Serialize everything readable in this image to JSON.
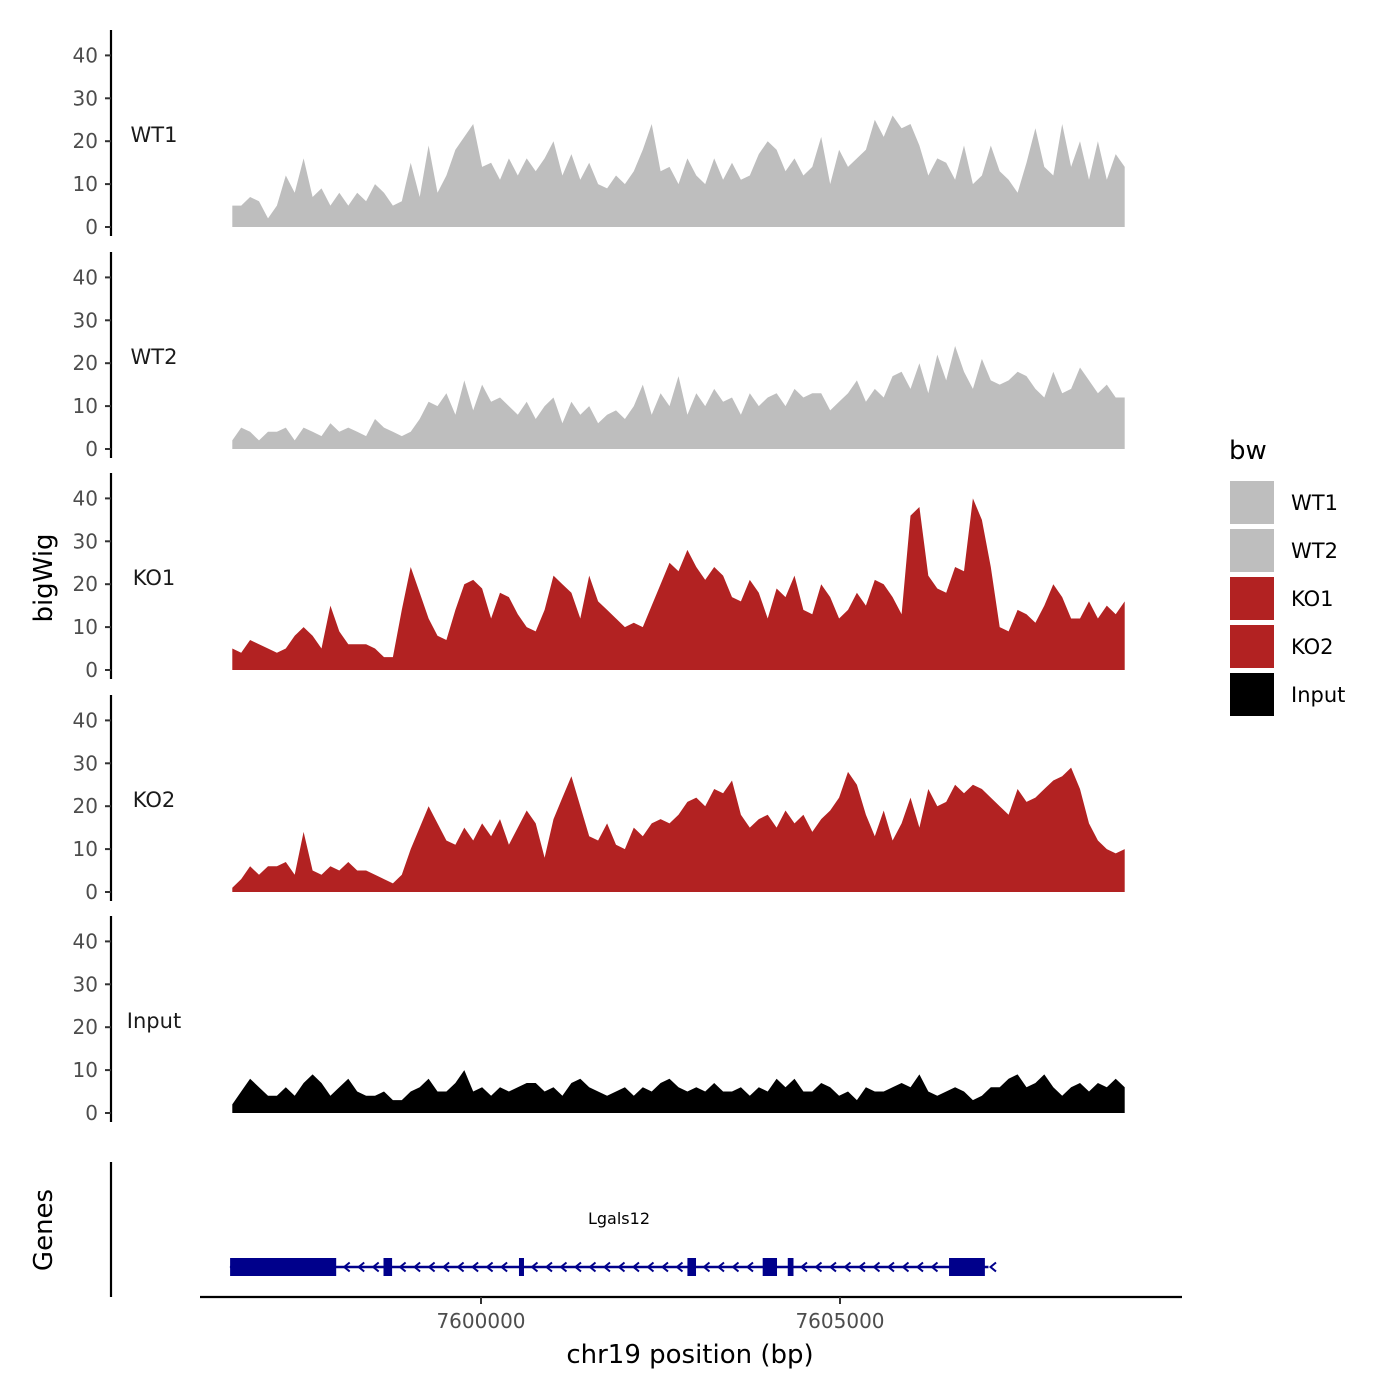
{
  "chart_data": {
    "type": "area",
    "y_axis_title": "bigWig",
    "genes_axis_title": "Genes",
    "x_axis_title": "chr19 position (bp)",
    "x_range": [
      7596200,
      7609900
    ],
    "x_ticks": [
      7600000,
      7605000
    ],
    "x_tick_labels": [
      "7600000",
      "7605000"
    ],
    "y_range": [
      0,
      45
    ],
    "y_ticks": [
      0,
      10,
      20,
      30,
      40
    ],
    "y_tick_labels": [
      "0",
      "10",
      "20",
      "30",
      "40"
    ],
    "signal_start": 7596650,
    "signal_end": 7609100,
    "tracks": [
      {
        "name": "WT1",
        "color": "#bebebe",
        "values": [
          5,
          5,
          7,
          6,
          2,
          5,
          12,
          8,
          16,
          7,
          9,
          5,
          8,
          5,
          8,
          6,
          10,
          8,
          5,
          6,
          15,
          7,
          19,
          8,
          12,
          18,
          21,
          24,
          14,
          15,
          11,
          16,
          12,
          16,
          13,
          16,
          20,
          12,
          17,
          11,
          15,
          10,
          9,
          12,
          10,
          13,
          18,
          24,
          13,
          14,
          10,
          16,
          12,
          10,
          16,
          11,
          15,
          11,
          12,
          17,
          20,
          18,
          13,
          16,
          12,
          14,
          21,
          10,
          18,
          14,
          16,
          18,
          25,
          21,
          26,
          23,
          24,
          19,
          12,
          16,
          15,
          11,
          19,
          10,
          12,
          19,
          13,
          11,
          8,
          15,
          23,
          14,
          12,
          24,
          14,
          20,
          11,
          20,
          11,
          17,
          14
        ]
      },
      {
        "name": "WT2",
        "color": "#bebebe",
        "values": [
          2,
          5,
          4,
          2,
          4,
          4,
          5,
          2,
          5,
          4,
          3,
          6,
          4,
          5,
          4,
          3,
          7,
          5,
          4,
          3,
          4,
          7,
          11,
          10,
          13,
          8,
          16,
          9,
          15,
          11,
          12,
          10,
          8,
          11,
          7,
          10,
          12,
          6,
          11,
          8,
          10,
          6,
          8,
          9,
          7,
          10,
          15,
          8,
          13,
          10,
          17,
          8,
          13,
          10,
          14,
          11,
          12,
          8,
          13,
          10,
          12,
          13,
          10,
          14,
          12,
          13,
          13,
          9,
          11,
          13,
          16,
          11,
          14,
          12,
          17,
          18,
          14,
          20,
          13,
          22,
          16,
          24,
          18,
          14,
          21,
          16,
          15,
          16,
          18,
          17,
          14,
          12,
          18,
          13,
          14,
          19,
          16,
          13,
          15,
          12,
          12
        ]
      },
      {
        "name": "KO1",
        "color": "#b22222",
        "values": [
          5,
          4,
          7,
          6,
          5,
          4,
          5,
          8,
          10,
          8,
          5,
          15,
          9,
          6,
          6,
          6,
          5,
          3,
          3,
          14,
          24,
          18,
          12,
          8,
          7,
          14,
          20,
          21,
          19,
          12,
          18,
          17,
          13,
          10,
          9,
          14,
          22,
          20,
          18,
          12,
          22,
          16,
          14,
          12,
          10,
          11,
          10,
          15,
          20,
          25,
          23,
          28,
          24,
          21,
          24,
          22,
          17,
          16,
          21,
          18,
          12,
          19,
          17,
          22,
          14,
          13,
          20,
          17,
          12,
          14,
          18,
          15,
          21,
          20,
          17,
          13,
          36,
          38,
          22,
          19,
          18,
          24,
          23,
          40,
          35,
          24,
          10,
          9,
          14,
          13,
          11,
          15,
          20,
          17,
          12,
          12,
          16,
          12,
          15,
          13,
          16
        ]
      },
      {
        "name": "KO2",
        "color": "#b22222",
        "values": [
          1,
          3,
          6,
          4,
          6,
          6,
          7,
          4,
          14,
          5,
          4,
          6,
          5,
          7,
          5,
          5,
          4,
          3,
          2,
          4,
          10,
          15,
          20,
          16,
          12,
          11,
          15,
          12,
          16,
          13,
          17,
          11,
          15,
          19,
          16,
          8,
          17,
          22,
          27,
          20,
          13,
          12,
          16,
          11,
          10,
          15,
          13,
          16,
          17,
          16,
          18,
          21,
          22,
          20,
          24,
          23,
          26,
          18,
          15,
          17,
          18,
          15,
          19,
          16,
          18,
          14,
          17,
          19,
          22,
          28,
          25,
          18,
          13,
          19,
          12,
          16,
          22,
          15,
          24,
          20,
          21,
          25,
          23,
          25,
          24,
          22,
          20,
          18,
          24,
          21,
          22,
          24,
          26,
          27,
          29,
          24,
          16,
          12,
          10,
          9,
          10
        ]
      },
      {
        "name": "Input",
        "color": "#000000",
        "values": [
          2,
          5,
          8,
          6,
          4,
          4,
          6,
          4,
          7,
          9,
          7,
          4,
          6,
          8,
          5,
          4,
          4,
          5,
          3,
          3,
          5,
          6,
          8,
          5,
          5,
          7,
          10,
          5,
          6,
          4,
          6,
          5,
          6,
          7,
          7,
          5,
          6,
          4,
          7,
          8,
          6,
          5,
          4,
          5,
          6,
          4,
          6,
          5,
          7,
          8,
          6,
          5,
          6,
          5,
          7,
          5,
          5,
          6,
          4,
          6,
          5,
          8,
          6,
          8,
          5,
          5,
          7,
          6,
          4,
          5,
          3,
          6,
          5,
          5,
          6,
          7,
          6,
          9,
          5,
          4,
          5,
          6,
          5,
          3,
          4,
          6,
          6,
          8,
          9,
          6,
          7,
          9,
          6,
          4,
          6,
          7,
          5,
          7,
          6,
          8,
          6
        ]
      }
    ],
    "legend_title": "bw",
    "legend_position": "right",
    "legend": [
      {
        "label": "WT1",
        "color": "#bebebe"
      },
      {
        "label": "WT2",
        "color": "#bebebe"
      },
      {
        "label": "KO1",
        "color": "#b22222"
      },
      {
        "label": "KO2",
        "color": "#b22222"
      },
      {
        "label": "Input",
        "color": "#000000"
      }
    ],
    "gene": {
      "name": "Lgals12",
      "strand": "-",
      "color": "#00008b",
      "start": 7596620,
      "end": 7607200,
      "exons": [
        [
          7596620,
          7598100
        ],
        [
          7598760,
          7598880
        ],
        [
          7600650,
          7600720
        ],
        [
          7603000,
          7603120
        ],
        [
          7604050,
          7604250
        ],
        [
          7604400,
          7604480
        ],
        [
          7606650,
          7607150
        ]
      ]
    }
  }
}
